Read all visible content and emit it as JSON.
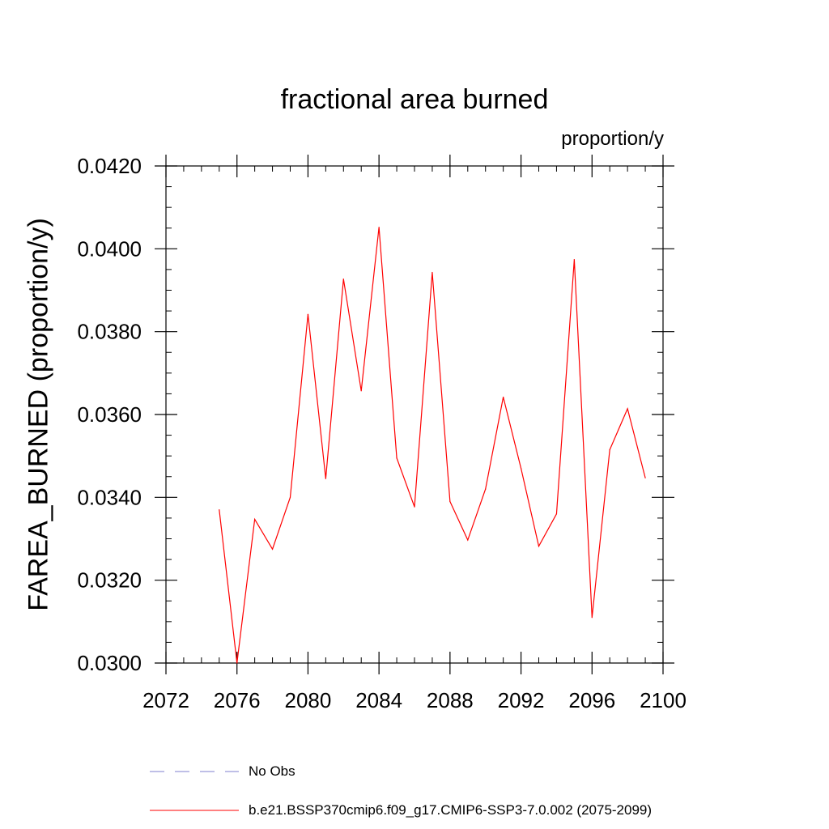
{
  "chart_data": {
    "type": "line",
    "title": "fractional area burned",
    "units_label": "proportion/y",
    "xlabel": "",
    "ylabel": "FAREA_BURNED  (proportion/y)",
    "xlim": [
      2072,
      2100
    ],
    "ylim": [
      0.03,
      0.042
    ],
    "x_ticks": [
      2072,
      2076,
      2080,
      2084,
      2088,
      2092,
      2096,
      2100
    ],
    "x_tick_labels": [
      "2072",
      "2076",
      "2080",
      "2084",
      "2088",
      "2092",
      "2096",
      "2100"
    ],
    "y_ticks": [
      0.03,
      0.032,
      0.034,
      0.036,
      0.038,
      0.04,
      0.042
    ],
    "y_tick_labels": [
      "0.0300",
      "0.0320",
      "0.0340",
      "0.0360",
      "0.0380",
      "0.0400",
      "0.0420"
    ],
    "grid": false,
    "series": [
      {
        "name": "b.e21.BSSP370cmip6.f09_g17.CMIP6-SSP3-7.0.002 (2075-2099)",
        "color": "#ff0000",
        "dash": "solid",
        "x": [
          2075,
          2076,
          2077,
          2078,
          2079,
          2080,
          2081,
          2082,
          2083,
          2084,
          2085,
          2086,
          2087,
          2088,
          2089,
          2090,
          2091,
          2092,
          2093,
          2094,
          2095,
          2096,
          2097,
          2098,
          2099
        ],
        "values": [
          0.0337,
          0.03,
          0.03347,
          0.03275,
          0.034,
          0.03842,
          0.03445,
          0.03927,
          0.03657,
          0.04052,
          0.03495,
          0.03377,
          0.03943,
          0.0339,
          0.03297,
          0.0342,
          0.03642,
          0.0347,
          0.03282,
          0.0336,
          0.03974,
          0.0311,
          0.03515,
          0.03614,
          0.03447
        ]
      }
    ],
    "legend": [
      {
        "label": "No Obs",
        "color": "#7f7fcf",
        "dash": "dashed"
      },
      {
        "label": "b.e21.BSSP370cmip6.f09_g17.CMIP6-SSP3-7.0.002 (2075-2099)",
        "color": "#ff0000",
        "dash": "solid"
      }
    ],
    "legend_position": "bottom-left"
  }
}
